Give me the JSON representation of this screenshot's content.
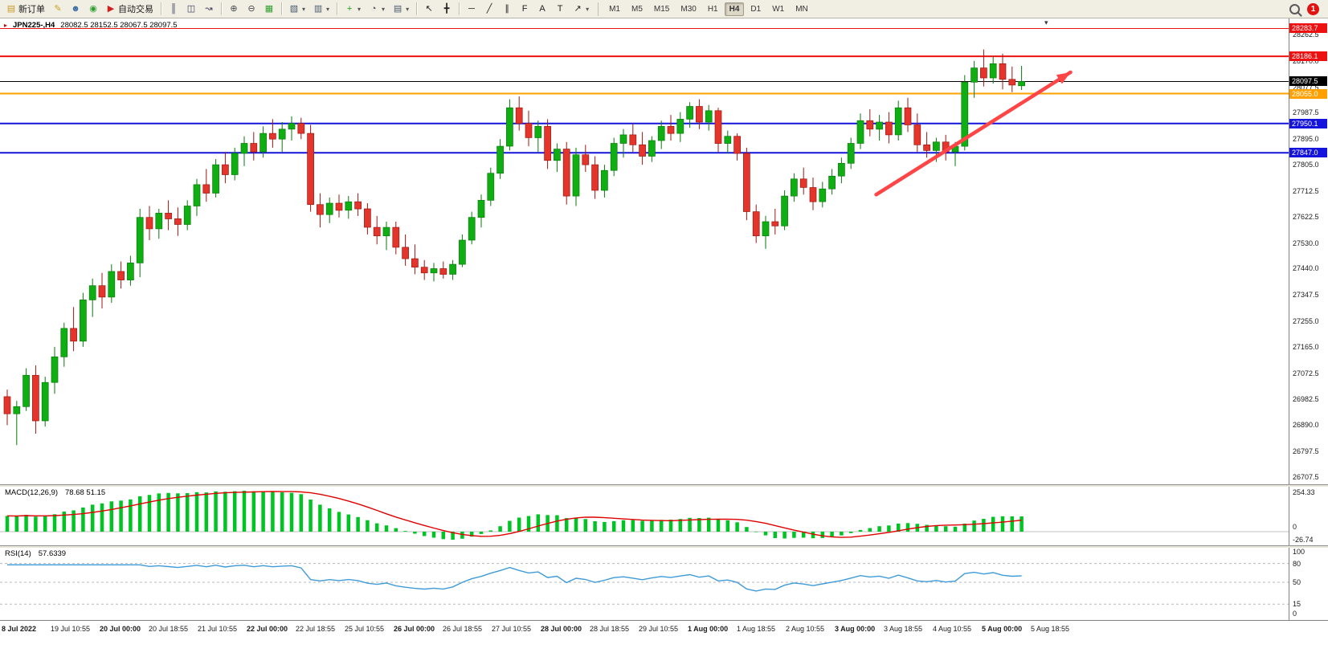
{
  "toolbar": {
    "groups": [
      {
        "items": [
          {
            "name": "new-order-button",
            "icon": "new-order-icon",
            "glyph": "▤",
            "glyph_color": "#c79a2a",
            "label": "新订单"
          },
          {
            "name": "metaeditor-button",
            "icon": "metaeditor-icon",
            "glyph": "✎",
            "glyph_color": "#c9a11e"
          },
          {
            "name": "community-button",
            "icon": "community-person-icon",
            "glyph": "☻",
            "glyph_color": "#3a6ea5"
          },
          {
            "name": "mql5-button",
            "icon": "mql5-icon",
            "glyph": "◉",
            "glyph_color": "#2f9e2f"
          },
          {
            "name": "auto-trading-button",
            "icon": "auto-trading-icon",
            "glyph": "▶",
            "glyph_color": "#cf2020",
            "label": "自动交易"
          }
        ]
      },
      {
        "items": [
          {
            "name": "bar-chart-button",
            "icon": "bar-chart-icon",
            "glyph": "║",
            "glyph_color": "#3a3a5c"
          },
          {
            "name": "candlestick-chart-button",
            "icon": "candlestick-icon",
            "glyph": "◫",
            "glyph_color": "#3a3a5c"
          },
          {
            "name": "line-chart-button",
            "icon": "line-chart-icon",
            "glyph": "↝",
            "glyph_color": "#3a3a5c"
          }
        ]
      },
      {
        "items": [
          {
            "name": "zoom-in-button",
            "icon": "zoom-in-icon",
            "glyph": "⊕",
            "glyph_color": "#44474b"
          },
          {
            "name": "zoom-out-button",
            "icon": "zoom-out-icon",
            "glyph": "⊖",
            "glyph_color": "#44474b"
          },
          {
            "name": "tile-windows-button",
            "icon": "tile-windows-icon",
            "glyph": "▦",
            "glyph_color": "#2f9e2f"
          }
        ]
      },
      {
        "items": [
          {
            "name": "new-chart-button",
            "icon": "new-chart-icon",
            "glyph": "▧",
            "glyph_color": "#47586b",
            "caret": true
          },
          {
            "name": "profiles-button",
            "icon": "profiles-icon",
            "glyph": "▥",
            "glyph_color": "#47586b",
            "caret": true
          }
        ]
      },
      {
        "items": [
          {
            "name": "indicators-button",
            "icon": "indicators-plus-icon",
            "glyph": "+",
            "glyph_color": "#18a018",
            "caret": true
          },
          {
            "name": "periods-button",
            "icon": "clock-icon",
            "glyph": "◔",
            "glyph_color": "#44474b",
            "caret": true
          },
          {
            "name": "templates-button",
            "icon": "template-icon",
            "glyph": "▤",
            "glyph_color": "#47586b",
            "caret": true
          }
        ]
      },
      {
        "items": [
          {
            "name": "cursor-button",
            "icon": "cursor-icon",
            "glyph": "↖",
            "glyph_color": "#222"
          },
          {
            "name": "crosshair-button",
            "icon": "crosshair-icon",
            "glyph": "╋",
            "glyph_color": "#222"
          }
        ]
      },
      {
        "items": [
          {
            "name": "horizontal-line-button",
            "icon": "horizontal-line-icon",
            "glyph": "─",
            "glyph_color": "#222"
          },
          {
            "name": "trendline-button",
            "icon": "trendline-icon",
            "glyph": "╱",
            "glyph_color": "#222"
          },
          {
            "name": "channel-button",
            "icon": "channel-icon",
            "glyph": "∥",
            "glyph_color": "#222"
          },
          {
            "name": "fibonacci-button",
            "icon": "fibonacci-icon",
            "glyph": "F",
            "glyph_color": "#222"
          },
          {
            "name": "text-button",
            "icon": "text-icon",
            "glyph": "A",
            "glyph_color": "#222"
          },
          {
            "name": "text-label-button",
            "icon": "text-label-icon",
            "glyph": "T",
            "glyph_color": "#222"
          },
          {
            "name": "arrows-button",
            "icon": "arrow-objects-icon",
            "glyph": "↗",
            "glyph_color": "#222",
            "caret": true
          }
        ]
      }
    ],
    "timeframes": [
      "M1",
      "M5",
      "M15",
      "M30",
      "H1",
      "H4",
      "D1",
      "W1",
      "MN"
    ],
    "active_timeframe": "H4",
    "notification_count": "1"
  },
  "chart": {
    "title": "JPN225-,H4",
    "ohlc_text": "28082.5 28152.5 28067.5 28097.5"
  },
  "macd": {
    "title": "MACD(12,26,9)",
    "values_text": "78.68 51.15",
    "axis_labels": [
      "254.33",
      "0",
      "-26.74"
    ],
    "bar_color": "#00c424",
    "signal_color": "#e00000"
  },
  "rsi": {
    "title": "RSI(14)",
    "value_text": "57.6339",
    "axis_labels": [
      "100",
      "80",
      "50",
      "15",
      "0"
    ],
    "levels": [
      80,
      50,
      15
    ],
    "line_color": "#3f9bd8"
  },
  "chart_data": {
    "type": "candlestick",
    "symbol": "JPN225-",
    "timeframe": "H4",
    "title": "JPN225-,H4",
    "last_bar": {
      "open": 28082.5,
      "high": 28152.5,
      "low": 28067.5,
      "close": 28097.5
    },
    "current_price": 28097.5,
    "current_price_label": "28097.5",
    "ylim": [
      26707.5,
      28262.5
    ],
    "colors": {
      "up": "#0fae12",
      "up_border": "#0a7a0c",
      "down": "#e3352b",
      "down_border": "#9e1710"
    },
    "y_axis_ticks": [
      "28262.5",
      "28170.0",
      "28077.5",
      "27987.5",
      "27895.0",
      "27805.0",
      "27712.5",
      "27622.5",
      "27530.0",
      "27440.0",
      "27347.5",
      "27255.0",
      "27165.0",
      "27072.5",
      "26982.5",
      "26890.0",
      "26797.5",
      "26707.5"
    ],
    "levels": [
      {
        "value": 28283.7,
        "label": "28283.7",
        "color": "#ee1111",
        "width": 1
      },
      {
        "value": 28186.1,
        "label": "28186.1",
        "color": "#ee1111",
        "width": 2
      },
      {
        "value": 28055.0,
        "label": "28055.0",
        "color": "#ffa000",
        "width": 2
      },
      {
        "value": 27950.1,
        "label": "27950.1",
        "color": "#1414dc",
        "width": 2
      },
      {
        "value": 27847.0,
        "label": "27847.0",
        "color": "#1414dc",
        "width": 2
      }
    ],
    "annotations": [
      {
        "type": "arrow",
        "from_index": 92,
        "from_value": 27700,
        "to_index": 112.5,
        "to_value": 28130,
        "color": "#ff4545"
      }
    ],
    "x_labels": [
      "8 Jul 2022",
      "19 Jul 10:55",
      "20 Jul 00:00",
      "20 Jul 18:55",
      "21 Jul 10:55",
      "22 Jul 00:00",
      "22 Jul 18:55",
      "25 Jul 10:55",
      "26 Jul 00:00",
      "26 Jul 18:55",
      "27 Jul 10:55",
      "28 Jul 00:00",
      "28 Jul 18:55",
      "29 Jul 10:55",
      "1 Aug 00:00",
      "1 Aug 18:55",
      "2 Aug 10:55",
      "3 Aug 00:00",
      "3 Aug 18:55",
      "4 Aug 10:55",
      "5 Aug 00:00",
      "5 Aug 18:55"
    ],
    "ohlc": [
      [
        26990,
        27015,
        26890,
        26930
      ],
      [
        26930,
        26975,
        26820,
        26955
      ],
      [
        26955,
        27090,
        26940,
        27065
      ],
      [
        27065,
        27100,
        26860,
        26905
      ],
      [
        26905,
        27060,
        26885,
        27040
      ],
      [
        27040,
        27165,
        27000,
        27130
      ],
      [
        27130,
        27250,
        27095,
        27230
      ],
      [
        27230,
        27305,
        27150,
        27185
      ],
      [
        27185,
        27355,
        27165,
        27330
      ],
      [
        27330,
        27405,
        27270,
        27380
      ],
      [
        27380,
        27425,
        27300,
        27340
      ],
      [
        27340,
        27455,
        27320,
        27430
      ],
      [
        27430,
        27465,
        27370,
        27400
      ],
      [
        27400,
        27485,
        27380,
        27460
      ],
      [
        27460,
        27650,
        27410,
        27620
      ],
      [
        27620,
        27660,
        27540,
        27580
      ],
      [
        27580,
        27650,
        27545,
        27635
      ],
      [
        27635,
        27680,
        27575,
        27615
      ],
      [
        27615,
        27655,
        27555,
        27595
      ],
      [
        27595,
        27680,
        27575,
        27660
      ],
      [
        27660,
        27755,
        27625,
        27735
      ],
      [
        27735,
        27790,
        27675,
        27705
      ],
      [
        27705,
        27825,
        27690,
        27805
      ],
      [
        27805,
        27850,
        27740,
        27770
      ],
      [
        27770,
        27865,
        27750,
        27845
      ],
      [
        27845,
        27905,
        27800,
        27880
      ],
      [
        27880,
        27920,
        27820,
        27850
      ],
      [
        27850,
        27940,
        27830,
        27915
      ],
      [
        27915,
        27965,
        27865,
        27895
      ],
      [
        27895,
        27955,
        27850,
        27930
      ],
      [
        27930,
        27975,
        27890,
        27950
      ],
      [
        27950,
        27970,
        27895,
        27915
      ],
      [
        27915,
        27945,
        27640,
        27665
      ],
      [
        27665,
        27705,
        27585,
        27630
      ],
      [
        27630,
        27690,
        27600,
        27670
      ],
      [
        27670,
        27700,
        27620,
        27645
      ],
      [
        27645,
        27695,
        27615,
        27675
      ],
      [
        27675,
        27705,
        27625,
        27650
      ],
      [
        27650,
        27670,
        27560,
        27585
      ],
      [
        27585,
        27625,
        27525,
        27555
      ],
      [
        27555,
        27605,
        27505,
        27585
      ],
      [
        27585,
        27605,
        27490,
        27515
      ],
      [
        27515,
        27560,
        27450,
        27475
      ],
      [
        27475,
        27525,
        27420,
        27445
      ],
      [
        27445,
        27470,
        27400,
        27425
      ],
      [
        27425,
        27460,
        27395,
        27440
      ],
      [
        27440,
        27465,
        27405,
        27420
      ],
      [
        27420,
        27470,
        27400,
        27455
      ],
      [
        27455,
        27560,
        27445,
        27540
      ],
      [
        27540,
        27640,
        27525,
        27620
      ],
      [
        27620,
        27700,
        27585,
        27680
      ],
      [
        27680,
        27795,
        27660,
        27775
      ],
      [
        27775,
        27895,
        27755,
        27870
      ],
      [
        27870,
        28035,
        27855,
        28005
      ],
      [
        28005,
        28045,
        27925,
        27950
      ],
      [
        27950,
        27995,
        27870,
        27900
      ],
      [
        27900,
        27960,
        27850,
        27940
      ],
      [
        27940,
        27965,
        27790,
        27820
      ],
      [
        27820,
        27880,
        27780,
        27860
      ],
      [
        27860,
        27885,
        27665,
        27695
      ],
      [
        27695,
        27865,
        27660,
        27840
      ],
      [
        27840,
        27875,
        27780,
        27805
      ],
      [
        27805,
        27835,
        27685,
        27715
      ],
      [
        27715,
        27805,
        27690,
        27785
      ],
      [
        27785,
        27900,
        27765,
        27880
      ],
      [
        27880,
        27930,
        27830,
        27910
      ],
      [
        27910,
        27950,
        27850,
        27875
      ],
      [
        27875,
        27920,
        27805,
        27835
      ],
      [
        27835,
        27905,
        27815,
        27890
      ],
      [
        27890,
        27960,
        27860,
        27940
      ],
      [
        27940,
        27980,
        27890,
        27915
      ],
      [
        27915,
        27990,
        27885,
        27965
      ],
      [
        27965,
        28025,
        27935,
        28010
      ],
      [
        28010,
        28035,
        27930,
        27955
      ],
      [
        27955,
        28015,
        27925,
        27995
      ],
      [
        27995,
        28005,
        27850,
        27880
      ],
      [
        27880,
        27925,
        27845,
        27905
      ],
      [
        27905,
        27915,
        27820,
        27845
      ],
      [
        27845,
        27865,
        27610,
        27640
      ],
      [
        27640,
        27665,
        27530,
        27555
      ],
      [
        27555,
        27625,
        27510,
        27605
      ],
      [
        27605,
        27650,
        27560,
        27590
      ],
      [
        27590,
        27715,
        27575,
        27695
      ],
      [
        27695,
        27775,
        27675,
        27755
      ],
      [
        27755,
        27795,
        27700,
        27725
      ],
      [
        27725,
        27760,
        27645,
        27675
      ],
      [
        27675,
        27745,
        27655,
        27720
      ],
      [
        27720,
        27790,
        27700,
        27765
      ],
      [
        27765,
        27830,
        27740,
        27810
      ],
      [
        27810,
        27900,
        27790,
        27880
      ],
      [
        27880,
        27985,
        27860,
        27960
      ],
      [
        27960,
        28000,
        27905,
        27930
      ],
      [
        27930,
        27980,
        27890,
        27955
      ],
      [
        27955,
        27990,
        27880,
        27910
      ],
      [
        27910,
        28030,
        27890,
        28005
      ],
      [
        28005,
        28040,
        27920,
        27945
      ],
      [
        27945,
        27985,
        27850,
        27875
      ],
      [
        27875,
        27920,
        27830,
        27855
      ],
      [
        27855,
        27900,
        27815,
        27885
      ],
      [
        27885,
        27910,
        27820,
        27850
      ],
      [
        27850,
        27885,
        27800,
        27870
      ],
      [
        27870,
        28120,
        27855,
        28095
      ],
      [
        28095,
        28170,
        28040,
        28145
      ],
      [
        28145,
        28210,
        28080,
        28110
      ],
      [
        28110,
        28185,
        28090,
        28160
      ],
      [
        28160,
        28195,
        28070,
        28105
      ],
      [
        28105,
        28150,
        28060,
        28085
      ],
      [
        28082.5,
        28152.5,
        28067.5,
        28097.5
      ]
    ],
    "indicators": [
      {
        "type": "macd",
        "params": "12,26,9",
        "display_values": [
          78.68,
          51.15
        ],
        "axis_max": 254.33
      },
      {
        "type": "rsi",
        "params": "14",
        "display_value": 57.6339,
        "range": [
          0,
          100
        ],
        "levels": [
          80,
          50,
          15
        ]
      }
    ]
  }
}
